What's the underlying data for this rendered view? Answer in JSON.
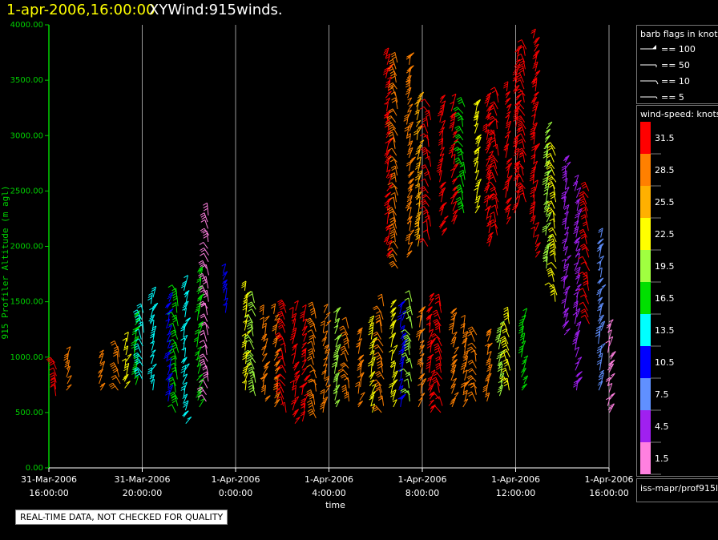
{
  "header": {
    "time_text": "1-apr-2006,16:00:00",
    "product_text": "XYWind:915winds."
  },
  "qc_note": "REAL-TIME DATA, NOT CHECKED FOR QUALITY",
  "source_text": "iss-mapr/prof915l",
  "legend_barbs": {
    "title": "barb flags in knots",
    "items": [
      {
        "label": "== 100",
        "kind": "pennant"
      },
      {
        "label": "== 50",
        "kind": "flag"
      },
      {
        "label": "== 10",
        "kind": "full"
      },
      {
        "label": "== 5",
        "kind": "half"
      }
    ]
  },
  "legend_speed": {
    "title": "wind-speed: knots",
    "levels": [
      {
        "label": "31.5",
        "color": "#ff0000"
      },
      {
        "label": "28.5",
        "color": "#ff8000"
      },
      {
        "label": "25.5",
        "color": "#ffb000"
      },
      {
        "label": "22.5",
        "color": "#ffff00"
      },
      {
        "label": "19.5",
        "color": "#a0ff40"
      },
      {
        "label": "16.5",
        "color": "#00e000"
      },
      {
        "label": "13.5",
        "color": "#00ffff"
      },
      {
        "label": "10.5",
        "color": "#0000ff"
      },
      {
        "label": "7.5",
        "color": "#6090ff"
      },
      {
        "label": "4.5",
        "color": "#a020f0"
      },
      {
        "label": "1.5",
        "color": "#ff80e0"
      }
    ]
  },
  "chart_data": {
    "type": "scatter",
    "xlabel": "time",
    "ylabel": "915 Profiler Altitude (m agl)",
    "x_ticks": [
      {
        "value": 0,
        "date": "31-Mar-2006",
        "time": "16:00:00"
      },
      {
        "value": 4,
        "date": "31-Mar-2006",
        "time": "20:00:00"
      },
      {
        "value": 8,
        "date": "1-Apr-2006",
        "time": "0:00:00"
      },
      {
        "value": 12,
        "date": "1-Apr-2006",
        "time": "4:00:00"
      },
      {
        "value": 16,
        "date": "1-Apr-2006",
        "time": "8:00:00"
      },
      {
        "value": 20,
        "date": "1-Apr-2006",
        "time": "12:00:00"
      },
      {
        "value": 24,
        "date": "1-Apr-2006",
        "time": "16:00:00"
      }
    ],
    "y_ticks": [
      "0.00",
      "500.00",
      "1000.00",
      "1500.00",
      "2000.00",
      "2500.00",
      "3000.00",
      "3500.00",
      "4000.00"
    ],
    "ylim": [
      0,
      4000
    ],
    "grid": "vertical",
    "columns": [
      [
        0.3,
        650,
        950,
        "#ff0000"
      ],
      [
        0.8,
        700,
        1000,
        "#ff8000"
      ],
      [
        2.2,
        700,
        1050,
        "#ff8000"
      ],
      [
        3.0,
        700,
        1100,
        "#ff8000"
      ],
      [
        3.3,
        720,
        1150,
        "#ffff00"
      ],
      [
        3.7,
        750,
        1400,
        "#00e000"
      ],
      [
        4.0,
        800,
        1450,
        "#00ffff"
      ],
      [
        4.4,
        700,
        1580,
        "#00ffff"
      ],
      [
        5.1,
        600,
        1500,
        "#0000ff"
      ],
      [
        5.5,
        500,
        1600,
        "#00e000"
      ],
      [
        5.8,
        400,
        1700,
        "#00ffff"
      ],
      [
        6.4,
        550,
        1800,
        "#00e000"
      ],
      [
        6.8,
        600,
        2300,
        "#ff80e0"
      ],
      [
        7.5,
        1400,
        1800,
        "#0000ff"
      ],
      [
        8.4,
        700,
        1600,
        "#ffff00"
      ],
      [
        8.8,
        650,
        1500,
        "#a0ff40"
      ],
      [
        9.2,
        600,
        1400,
        "#ff8000"
      ],
      [
        9.7,
        550,
        1400,
        "#ff8000"
      ],
      [
        10.1,
        500,
        1500,
        "#ff0000"
      ],
      [
        10.5,
        400,
        1450,
        "#ff0000"
      ],
      [
        10.9,
        420,
        1400,
        "#ff0000"
      ],
      [
        11.4,
        450,
        1450,
        "#ff8000"
      ],
      [
        11.8,
        500,
        1400,
        "#ff8000"
      ],
      [
        12.3,
        550,
        1400,
        "#a0ff40"
      ],
      [
        12.8,
        600,
        1300,
        "#ff8000"
      ],
      [
        13.3,
        550,
        1250,
        "#ff8000"
      ],
      [
        13.8,
        500,
        1300,
        "#ffff00"
      ],
      [
        14.3,
        500,
        1500,
        "#ff8000"
      ],
      [
        14.7,
        550,
        1500,
        "#ffff00"
      ],
      [
        15.1,
        550,
        1450,
        "#0000ff"
      ],
      [
        15.5,
        600,
        1500,
        "#a0ff40"
      ],
      [
        15.9,
        550,
        1400,
        "#ff8000"
      ],
      [
        16.3,
        500,
        1550,
        "#ff0000"
      ],
      [
        16.8,
        500,
        1500,
        "#ff0000"
      ],
      [
        17.3,
        550,
        1400,
        "#ff8000"
      ],
      [
        17.8,
        550,
        1300,
        "#ff8000"
      ],
      [
        18.3,
        600,
        1200,
        "#ff8000"
      ],
      [
        18.8,
        600,
        1250,
        "#ff8000"
      ],
      [
        19.3,
        650,
        1300,
        "#a0ff40"
      ],
      [
        19.7,
        700,
        1400,
        "#ffff00"
      ],
      [
        20.3,
        700,
        1400,
        "#00e000"
      ],
      [
        14.5,
        1900,
        3700,
        "#ff0000"
      ],
      [
        14.9,
        1800,
        3700,
        "#ff8000"
      ],
      [
        15.4,
        1900,
        3700,
        "#ff8000"
      ],
      [
        15.8,
        2000,
        3350,
        "#ffb000"
      ],
      [
        16.3,
        2000,
        3300,
        "#ff0000"
      ],
      [
        16.8,
        2100,
        3300,
        "#ff0000"
      ],
      [
        17.3,
        2200,
        3300,
        "#ff0000"
      ],
      [
        17.8,
        2300,
        3300,
        "#00e000"
      ],
      [
        18.3,
        2300,
        3300,
        "#ffff00"
      ],
      [
        18.8,
        2000,
        3350,
        "#ff0000"
      ],
      [
        19.2,
        2100,
        3400,
        "#ff0000"
      ],
      [
        19.6,
        2200,
        3450,
        "#ff0000"
      ],
      [
        20.0,
        2300,
        3750,
        "#ff0000"
      ],
      [
        20.4,
        2400,
        3800,
        "#ff0000"
      ],
      [
        20.8,
        1900,
        3900,
        "#ff0000"
      ],
      [
        21.3,
        1800,
        3100,
        "#a0ff40"
      ],
      [
        21.7,
        1500,
        2900,
        "#ffff00"
      ],
      [
        22.1,
        1200,
        2800,
        "#a020f0"
      ],
      [
        22.6,
        700,
        2600,
        "#a020f0"
      ],
      [
        23.1,
        1300,
        2500,
        "#ff0000"
      ],
      [
        23.6,
        700,
        2100,
        "#6090ff"
      ],
      [
        24.0,
        500,
        1300,
        "#ff80e0"
      ]
    ]
  }
}
